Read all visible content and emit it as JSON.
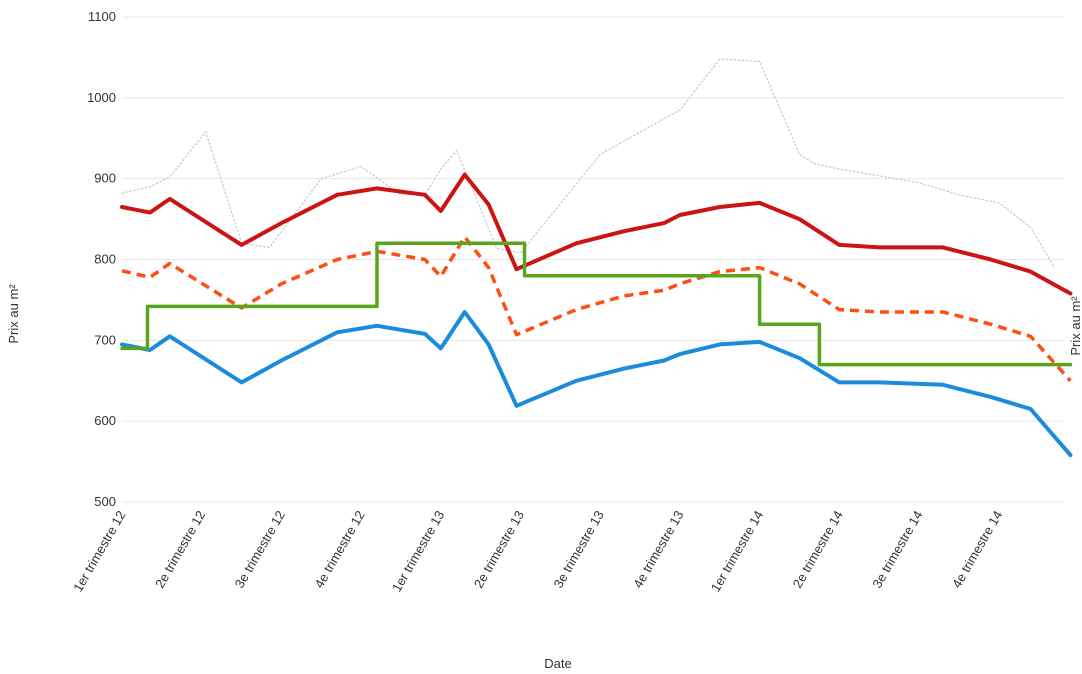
{
  "chart_data": {
    "type": "line",
    "xlabel": "Date",
    "ylabel": "Prix au m²",
    "ylabel_right": "Prix au m²",
    "ylim": [
      500,
      1100
    ],
    "yticks": [
      500,
      600,
      700,
      800,
      900,
      1000,
      1100
    ],
    "categories": [
      "1er trimestre 12",
      "2e trimestre 12",
      "3e trimestre 12",
      "4e trimestre 12",
      "1er trimestre 13",
      "2e trimestre 13",
      "3e trimestre 13",
      "4e trimestre 13",
      "1er trimestre 14",
      "2e trimestre 14",
      "3e trimestre 14",
      "4e trimestre 14"
    ],
    "grid": true,
    "series": [
      {
        "style": "dotted",
        "color": "#c8c8c8",
        "x": [
          0,
          0.35,
          0.6,
          1.05,
          1.5,
          1.85,
          2.5,
          3.0,
          3.5,
          3.8,
          4.0,
          4.2,
          4.7,
          5.0,
          6.0,
          7.0,
          7.5,
          8.0,
          8.5,
          8.7,
          9.0,
          10.0,
          10.5,
          11.0,
          11.4,
          11.7
        ],
        "y": [
          882,
          890,
          902,
          958,
          820,
          815,
          900,
          915,
          880,
          880,
          912,
          935,
          814,
          808,
          930,
          985,
          1048,
          1045,
          930,
          918,
          912,
          895,
          880,
          870,
          840,
          790
        ]
      },
      {
        "style": "solid",
        "color": "#cc1414",
        "x": [
          0,
          0.35,
          0.6,
          1.5,
          2.0,
          2.7,
          3.2,
          3.8,
          4.0,
          4.3,
          4.6,
          4.95,
          5.7,
          6.3,
          6.8,
          7.0,
          7.5,
          8.0,
          8.5,
          9.0,
          9.5,
          10.3,
          10.9,
          11.4,
          11.9
        ],
        "y": [
          865,
          858,
          875,
          818,
          845,
          880,
          888,
          880,
          860,
          905,
          868,
          788,
          820,
          835,
          845,
          855,
          865,
          870,
          850,
          818,
          815,
          815,
          800,
          785,
          758
        ]
      },
      {
        "style": "dashed",
        "color": "#ff4e14",
        "x": [
          0,
          0.35,
          0.6,
          1.5,
          2.0,
          2.7,
          3.2,
          3.8,
          4.0,
          4.3,
          4.6,
          4.95,
          5.7,
          6.3,
          6.8,
          7.0,
          7.5,
          8.0,
          8.5,
          9.0,
          9.5,
          10.3,
          10.9,
          11.4,
          11.9
        ],
        "y": [
          786,
          778,
          795,
          740,
          770,
          800,
          810,
          800,
          779,
          828,
          790,
          707,
          738,
          755,
          762,
          770,
          785,
          790,
          770,
          738,
          735,
          735,
          720,
          705,
          650
        ]
      },
      {
        "style": "solid",
        "color": "#1b8cdc",
        "x": [
          0,
          0.35,
          0.6,
          1.5,
          2.0,
          2.7,
          3.2,
          3.8,
          4.0,
          4.3,
          4.6,
          4.95,
          5.7,
          6.3,
          6.8,
          7.0,
          7.5,
          8.0,
          8.5,
          9.0,
          9.5,
          10.3,
          10.9,
          11.4,
          11.9
        ],
        "y": [
          695,
          688,
          705,
          648,
          675,
          710,
          718,
          708,
          690,
          735,
          695,
          619,
          650,
          665,
          675,
          683,
          695,
          698,
          678,
          648,
          648,
          645,
          630,
          615,
          558
        ]
      },
      {
        "style": "step",
        "color": "#58a61e",
        "x": [
          0,
          0.32,
          0.32,
          3.2,
          3.2,
          5.05,
          5.05,
          8.0,
          8.0,
          8.75,
          8.75,
          11.9
        ],
        "y": [
          690,
          690,
          742,
          742,
          820,
          820,
          780,
          780,
          720,
          720,
          670,
          670
        ]
      }
    ]
  }
}
